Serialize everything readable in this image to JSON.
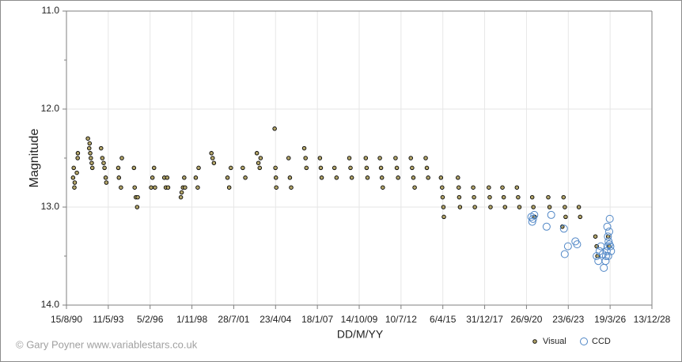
{
  "chart_data": {
    "type": "scatter",
    "y_label": "Magnitude",
    "x_label": "DD/M/YY",
    "annotation": "© Gary Poyner  www.variablestars.co.uk",
    "xlim": [
      "1990-08-15",
      "2028-12-13"
    ],
    "xticks": [
      {
        "value": "1990-08-15",
        "label": "15/8/90"
      },
      {
        "value": "1993-05-11",
        "label": "11/5/93"
      },
      {
        "value": "1996-02-05",
        "label": "5/2/96"
      },
      {
        "value": "1998-11-01",
        "label": "1/11/98"
      },
      {
        "value": "2001-07-28",
        "label": "28/7/01"
      },
      {
        "value": "2004-04-23",
        "label": "23/4/04"
      },
      {
        "value": "2007-01-18",
        "label": "18/1/07"
      },
      {
        "value": "2009-10-14",
        "label": "14/10/09"
      },
      {
        "value": "2012-07-10",
        "label": "10/7/12"
      },
      {
        "value": "2015-04-06",
        "label": "6/4/15"
      },
      {
        "value": "2017-12-31",
        "label": "31/12/17"
      },
      {
        "value": "2020-09-26",
        "label": "26/9/20"
      },
      {
        "value": "2023-06-23",
        "label": "23/6/23"
      },
      {
        "value": "2026-03-19",
        "label": "19/3/26"
      },
      {
        "value": "2028-12-13",
        "label": "13/12/28"
      }
    ],
    "ylim": [
      11,
      14
    ],
    "y_inverted": true,
    "yticks": [
      {
        "value": 11,
        "label": "11.0"
      },
      {
        "value": 12,
        "label": "12.0"
      },
      {
        "value": 13,
        "label": "13.0"
      },
      {
        "value": 14,
        "label": "14.0"
      }
    ],
    "yminorticks": [
      11.5,
      12.5,
      13.5
    ],
    "grid": true,
    "legend": "bottom-right",
    "series": [
      {
        "name": "Visual",
        "color": "#b3a56a",
        "marker": "filled",
        "x": [
          "1991-01-20",
          "1991-02-05",
          "1991-02-20",
          "1991-03-01",
          "1991-04-20",
          "1991-05-10",
          "1991-05-15",
          "1992-01-10",
          "1992-02-10",
          "1992-02-20",
          "1992-03-05",
          "1992-03-20",
          "1992-04-10",
          "1992-04-25",
          "1992-11-20",
          "1992-12-20",
          "1993-01-20",
          "1993-02-10",
          "1993-03-10",
          "1993-03-25",
          "1994-01-05",
          "1994-01-20",
          "1994-03-10",
          "1994-04-01",
          "1995-01-15",
          "1995-02-01",
          "1995-03-01",
          "1995-04-01",
          "1995-04-15",
          "1996-03-01",
          "1996-04-01",
          "1996-05-10",
          "1996-06-01",
          "1997-01-10",
          "1997-02-15",
          "1997-03-20",
          "1997-04-10",
          "1998-02-10",
          "1998-03-01",
          "1998-04-01",
          "1998-05-01",
          "1998-05-20",
          "1999-02-01",
          "1999-03-20",
          "1999-04-10",
          "2000-02-10",
          "2000-03-10",
          "2000-04-10",
          "2001-03-01",
          "2001-04-10",
          "2001-05-20",
          "2002-03-01",
          "2002-05-01",
          "2003-02-01",
          "2003-03-10",
          "2003-04-10",
          "2003-05-01",
          "2004-04-01",
          "2004-04-20",
          "2004-05-01",
          "2004-05-10",
          "2005-03-01",
          "2005-04-01",
          "2005-05-01",
          "2006-03-10",
          "2006-04-10",
          "2006-05-01",
          "2007-03-20",
          "2007-04-10",
          "2007-05-01",
          "2008-03-01",
          "2008-04-20",
          "2009-02-20",
          "2009-03-20",
          "2009-04-20",
          "2010-03-20",
          "2010-04-10",
          "2010-05-01",
          "2011-02-20",
          "2011-03-20",
          "2011-04-10",
          "2011-05-01",
          "2012-03-01",
          "2012-04-01",
          "2012-05-01",
          "2013-03-01",
          "2013-04-01",
          "2013-05-01",
          "2013-06-01",
          "2014-02-20",
          "2014-03-20",
          "2014-04-20",
          "2015-02-20",
          "2015-03-20",
          "2015-04-01",
          "2015-04-20",
          "2015-05-01",
          "2016-04-01",
          "2016-04-20",
          "2016-05-01",
          "2016-05-20",
          "2017-04-01",
          "2017-04-20",
          "2017-05-10",
          "2018-04-10",
          "2018-05-01",
          "2018-05-20",
          "2019-03-01",
          "2019-04-01",
          "2019-05-01",
          "2020-02-10",
          "2020-03-10",
          "2020-04-10",
          "2021-02-10",
          "2021-03-10",
          "2021-04-10",
          "2022-03-01",
          "2022-04-01",
          "2023-02-01",
          "2023-03-01",
          "2023-04-01",
          "2023-04-20",
          "2024-03-01",
          "2024-04-01",
          "2025-04-01",
          "2025-05-01",
          "2025-05-20",
          "2026-02-01",
          "2026-03-01"
        ],
        "values": [
          12.7,
          12.6,
          12.8,
          12.75,
          12.65,
          12.5,
          12.45,
          12.3,
          12.4,
          12.35,
          12.45,
          12.5,
          12.55,
          12.6,
          12.4,
          12.5,
          12.55,
          12.6,
          12.7,
          12.75,
          12.6,
          12.7,
          12.8,
          12.5,
          12.6,
          12.8,
          12.9,
          13.0,
          12.9,
          12.8,
          12.7,
          12.6,
          12.8,
          12.7,
          12.8,
          12.7,
          12.8,
          12.9,
          12.85,
          12.8,
          12.7,
          12.8,
          12.7,
          12.8,
          12.6,
          12.45,
          12.5,
          12.55,
          12.7,
          12.8,
          12.6,
          12.6,
          12.7,
          12.45,
          12.55,
          12.6,
          12.5,
          12.2,
          12.6,
          12.7,
          12.8,
          12.5,
          12.7,
          12.8,
          12.4,
          12.5,
          12.6,
          12.5,
          12.6,
          12.7,
          12.6,
          12.7,
          12.5,
          12.6,
          12.7,
          12.5,
          12.6,
          12.7,
          12.5,
          12.6,
          12.7,
          12.8,
          12.5,
          12.6,
          12.7,
          12.5,
          12.6,
          12.7,
          12.8,
          12.5,
          12.6,
          12.7,
          12.7,
          12.8,
          12.9,
          13.0,
          13.1,
          12.7,
          12.8,
          12.9,
          13.0,
          12.8,
          12.9,
          13.0,
          12.8,
          12.9,
          13.0,
          12.8,
          12.9,
          13.0,
          12.8,
          12.9,
          13.0,
          12.9,
          13.0,
          13.1,
          12.9,
          13.0,
          13.2,
          12.9,
          13.0,
          13.1,
          13.0,
          13.1,
          13.3,
          13.4,
          13.5,
          13.3,
          13.4
        ]
      },
      {
        "name": "CCD",
        "color": "#4f86c6",
        "marker": "open",
        "x": [
          "2021-01-20",
          "2021-02-10",
          "2021-03-01",
          "2021-04-01",
          "2022-01-20",
          "2022-05-10",
          "2023-03-10",
          "2023-03-30",
          "2023-06-15",
          "2023-12-10",
          "2024-01-20",
          "2025-05-01",
          "2025-06-10",
          "2025-07-10",
          "2025-08-10",
          "2025-09-25",
          "2025-10-20",
          "2025-12-10",
          "2025-12-28",
          "2026-01-10",
          "2026-01-25",
          "2026-02-10",
          "2026-02-25",
          "2026-03-10",
          "2026-03-25",
          "2026-04-10",
          "2026-02-01",
          "2026-01-15",
          "2026-03-01",
          "2025-12-01"
        ],
        "values": [
          13.1,
          13.15,
          13.12,
          13.08,
          13.2,
          13.08,
          13.22,
          13.48,
          13.4,
          13.35,
          13.38,
          13.5,
          13.55,
          13.45,
          13.4,
          13.48,
          13.62,
          13.5,
          13.45,
          13.2,
          13.3,
          13.35,
          13.25,
          13.12,
          13.4,
          13.45,
          13.5,
          13.4,
          13.38,
          13.55
        ]
      }
    ]
  }
}
